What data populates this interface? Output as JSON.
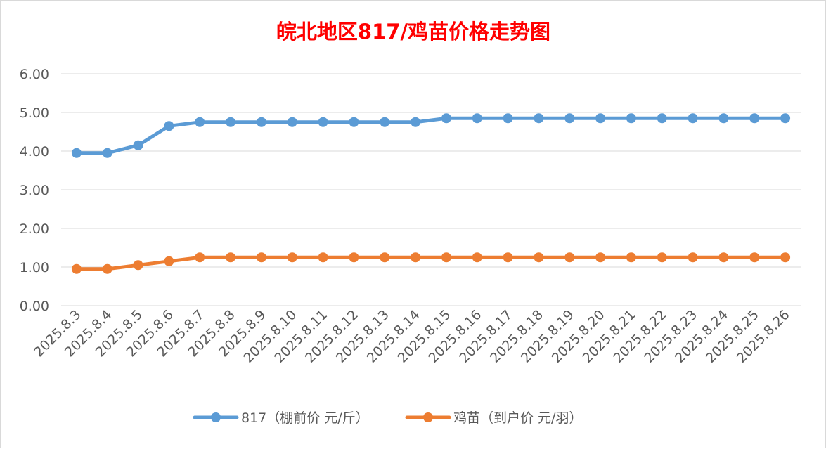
{
  "chart_data": {
    "type": "line",
    "title": "皖北地区817/鸡苗价格走势图",
    "xlabel": "",
    "ylabel": "",
    "ylim": [
      0,
      6
    ],
    "yticks": [
      "0.00",
      "1.00",
      "2.00",
      "3.00",
      "4.00",
      "5.00",
      "6.00"
    ],
    "grid": true,
    "legend_position": "bottom",
    "categories": [
      "2025.8.3",
      "2025.8.4",
      "2025.8.5",
      "2025.8.6",
      "2025.8.7",
      "2025.8.8",
      "2025.8.9",
      "2025.8.10",
      "2025.8.11",
      "2025.8.12",
      "2025.8.13",
      "2025.8.14",
      "2025.8.15",
      "2025.8.16",
      "2025.8.17",
      "2025.8.18",
      "2025.8.19",
      "2025.8.20",
      "2025.8.21",
      "2025.8.22",
      "2025.8.23",
      "2025.8.24",
      "2025.8.25",
      "2025.8.26"
    ],
    "series": [
      {
        "name": "817（棚前价 元/斤）",
        "color": "#5b9bd5",
        "values": [
          3.95,
          3.95,
          4.15,
          4.65,
          4.75,
          4.75,
          4.75,
          4.75,
          4.75,
          4.75,
          4.75,
          4.75,
          4.85,
          4.85,
          4.85,
          4.85,
          4.85,
          4.85,
          4.85,
          4.85,
          4.85,
          4.85,
          4.85,
          4.85
        ]
      },
      {
        "name": "鸡苗（到户价 元/羽）",
        "color": "#ed7d31",
        "values": [
          0.95,
          0.95,
          1.05,
          1.15,
          1.25,
          1.25,
          1.25,
          1.25,
          1.25,
          1.25,
          1.25,
          1.25,
          1.25,
          1.25,
          1.25,
          1.25,
          1.25,
          1.25,
          1.25,
          1.25,
          1.25,
          1.25,
          1.25,
          1.25
        ]
      }
    ]
  }
}
